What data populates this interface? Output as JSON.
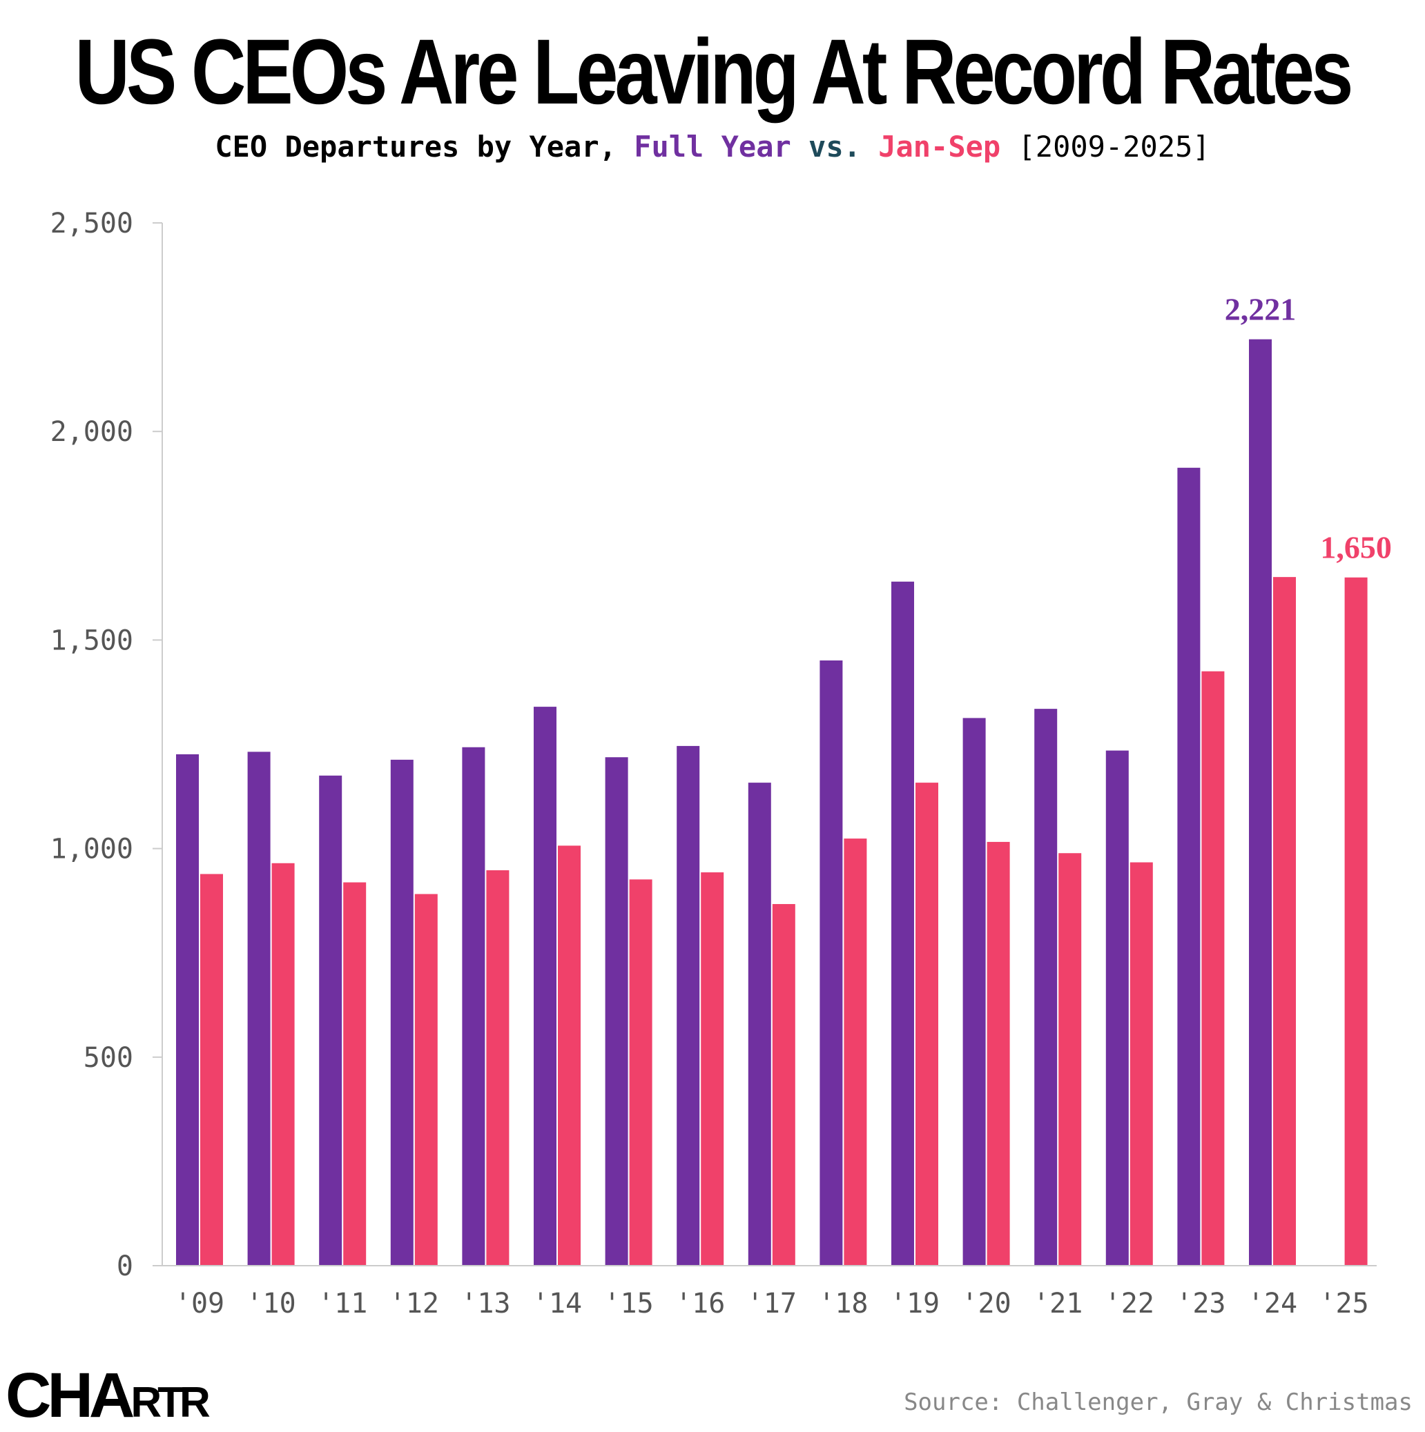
{
  "title": "US CEOs Are Leaving At Record Rates",
  "subtitle": {
    "prefix": "CEO Departures by Year, ",
    "series1": "Full Year",
    "vs": " vs. ",
    "series2": "Jan-Sep",
    "range": "[2009-2025]"
  },
  "colors": {
    "full_year": "#7030a0",
    "jan_sep": "#f0416a",
    "vs": "#1e4a5a"
  },
  "source": "Source: Challenger, Gray & Christmas",
  "logo": "CHARTR",
  "chart_data": {
    "type": "bar",
    "categories": [
      "'09",
      "'10",
      "'11",
      "'12",
      "'13",
      "'14",
      "'15",
      "'16",
      "'17",
      "'18",
      "'19",
      "'20",
      "'21",
      "'22",
      "'23",
      "'24",
      "'25"
    ],
    "series": [
      {
        "name": "Full Year",
        "values": [
          1226,
          1232,
          1175,
          1213,
          1243,
          1340,
          1219,
          1246,
          1158,
          1451,
          1640,
          1313,
          1335,
          1235,
          1913,
          2221,
          null
        ]
      },
      {
        "name": "Jan-Sep",
        "values": [
          939,
          965,
          919,
          891,
          948,
          1007,
          926,
          943,
          867,
          1024,
          1158,
          1016,
          989,
          967,
          1425,
          1651,
          1650
        ]
      }
    ],
    "ylim": [
      0,
      2500
    ],
    "yticks": [
      0,
      500,
      1000,
      1500,
      2000,
      2500
    ],
    "ytick_labels": [
      "0",
      "500",
      "1,000",
      "1,500",
      "2,000",
      "2,500"
    ],
    "annotations": [
      {
        "category": "'24",
        "series": "Full Year",
        "text": "2,221"
      },
      {
        "category": "'25",
        "series": "Jan-Sep",
        "text": "1,650"
      }
    ],
    "grid": false,
    "xlabel": "",
    "ylabel": ""
  }
}
